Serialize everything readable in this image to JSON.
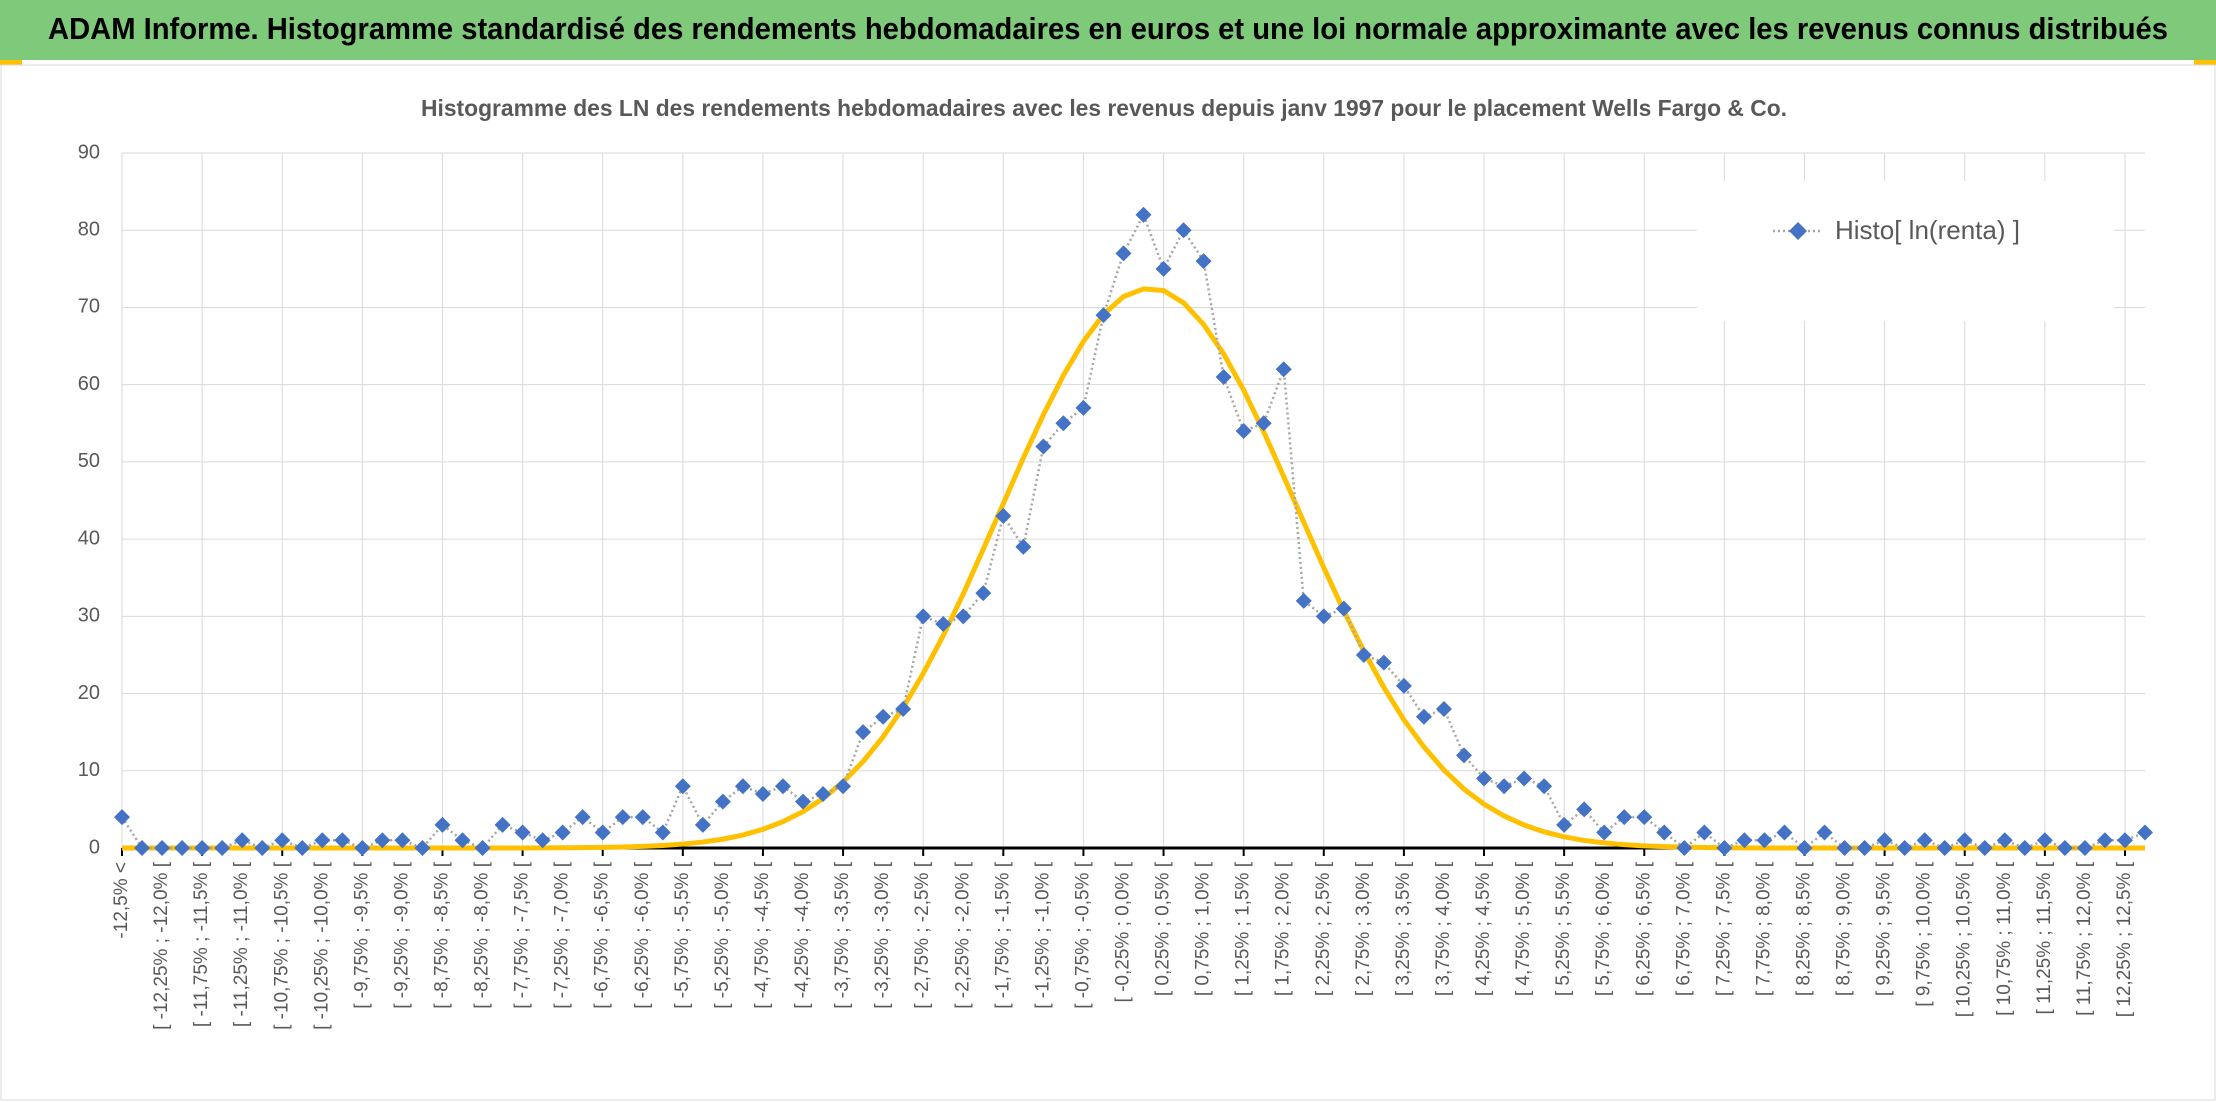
{
  "header": {
    "title": "ADAM Informe. Histogramme standardisé des rendements hebdomadaires en euros et une loi normale approximante avec les revenus connus distribués"
  },
  "chart_data": {
    "type": "line",
    "title": "Histogramme des LN des rendements hebdomadaires avec les revenus depuis janv 1997 pour le placement Wells Fargo & Co.",
    "categories": [
      "-12,5% <",
      null,
      "[ -12,25% ; -12,0% [",
      null,
      "[ -11,75% ; -11,5% [",
      null,
      "[ -11,25% ; -11,0% [",
      null,
      "[ -10,75% ; -10,5% [",
      null,
      "[ -10,25% ; -10,0% [",
      null,
      "[ -9,75% ; -9,5% [",
      null,
      "[ -9,25% ; -9,0% [",
      null,
      "[ -8,75% ; -8,5% [",
      null,
      "[ -8,25% ; -8,0% [",
      null,
      "[ -7,75% ; -7,5% [",
      null,
      "[ -7,25% ; -7,0% [",
      null,
      "[ -6,75% ; -6,5% [",
      null,
      "[ -6,25% ; -6,0% [",
      null,
      "[ -5,75% ; -5,5% [",
      null,
      "[ -5,25% ; -5,0% [",
      null,
      "[ -4,75% ; -4,5% [",
      null,
      "[ -4,25% ; -4,0% [",
      null,
      "[ -3,75% ; -3,5% [",
      null,
      "[ -3,25% ; -3,0% [",
      null,
      "[ -2,75% ; -2,5% [",
      null,
      "[ -2,25% ; -2,0% [",
      null,
      "[ -1,75% ; -1,5% [",
      null,
      "[ -1,25% ; -1,0% [",
      null,
      "[ -0,75% ; -0,5% [",
      null,
      "[ -0,25% ; 0,0% [",
      null,
      "[ 0,25% ; 0,5% [",
      null,
      "[ 0,75% ; 1,0% [",
      null,
      "[ 1,25% ; 1,5% [",
      null,
      "[ 1,75% ; 2,0% [",
      null,
      "[ 2,25% ; 2,5% [",
      null,
      "[ 2,75% ; 3,0% [",
      null,
      "[ 3,25% ; 3,5% [",
      null,
      "[ 3,75% ; 4,0% [",
      null,
      "[ 4,25% ; 4,5% [",
      null,
      "[ 4,75% ; 5,0% [",
      null,
      "[ 5,25% ; 5,5% [",
      null,
      "[ 5,75% ; 6,0% [",
      null,
      "[ 6,25% ; 6,5% [",
      null,
      "[ 6,75% ; 7,0% [",
      null,
      "[ 7,25% ; 7,5% [",
      null,
      "[ 7,75% ; 8,0% [",
      null,
      "[ 8,25% ; 8,5% [",
      null,
      "[ 8,75% ; 9,0% [",
      null,
      "[ 9,25% ; 9,5% [",
      null,
      "[ 9,75% ; 10,0% [",
      null,
      "[ 10,25% ; 10,5% [",
      null,
      "[ 10,75% ; 11,0% [",
      null,
      "[ 11,25% ; 11,5% [",
      null,
      "[ 11,75% ; 12,0% [",
      null,
      "[ 12,25% ; 12,5% [",
      null
    ],
    "series": [
      {
        "name": "Histo[ ln(renta) ]",
        "color": "#4472c4",
        "values": [
          4,
          0,
          0,
          0,
          0,
          0,
          1,
          0,
          1,
          0,
          1,
          1,
          0,
          1,
          1,
          0,
          3,
          1,
          0,
          3,
          2,
          1,
          2,
          4,
          2,
          4,
          4,
          2,
          8,
          3,
          6,
          8,
          7,
          8,
          6,
          7,
          8,
          15,
          17,
          18,
          30,
          29,
          30,
          33,
          43,
          39,
          52,
          55,
          57,
          69,
          77,
          82,
          75,
          80,
          76,
          61,
          54,
          55,
          62,
          32,
          30,
          31,
          25,
          24,
          21,
          17,
          18,
          12,
          9,
          8,
          9,
          8,
          3,
          5,
          2,
          4,
          4,
          2,
          0,
          2,
          0,
          1,
          1,
          2,
          0,
          2,
          0,
          0,
          1,
          0,
          1,
          0,
          1,
          0,
          1,
          0,
          1,
          0,
          0,
          1,
          1,
          2
        ]
      },
      {
        "color": "#ffc000",
        "values": [
          0,
          0,
          0,
          0,
          0,
          0,
          0,
          0,
          0,
          0,
          0,
          0,
          0,
          0,
          0,
          0,
          0,
          0,
          0,
          0,
          0,
          0.02,
          0.03,
          0.05,
          0.08,
          0.13,
          0.21,
          0.33,
          0.51,
          0.77,
          1.15,
          1.68,
          2.42,
          3.41,
          4.71,
          6.41,
          8.55,
          11.2,
          14.4,
          18.2,
          22.6,
          27.5,
          32.9,
          38.7,
          44.6,
          50.5,
          56.1,
          61.2,
          65.6,
          69.1,
          71.4,
          72.4,
          72.2,
          70.6,
          67.8,
          64.0,
          59.3,
          53.9,
          48.1,
          42.2,
          36.3,
          30.7,
          25.5,
          20.8,
          16.6,
          13.1,
          10.1,
          7.63,
          5.68,
          4.15,
          2.98,
          2.09,
          1.45,
          0.98,
          0.66,
          0.43,
          0.28,
          0.18,
          0.11,
          0.07,
          0.04,
          0.02,
          0,
          0,
          0,
          0,
          0,
          0,
          0,
          0,
          0,
          0,
          0,
          0,
          0,
          0,
          0,
          0,
          0,
          0,
          0,
          0
        ]
      }
    ],
    "ylim": [
      0,
      90
    ],
    "yticks": [
      0,
      10,
      20,
      30,
      40,
      50,
      60,
      70,
      80,
      90
    ],
    "grid": true,
    "legend": "top-right"
  }
}
